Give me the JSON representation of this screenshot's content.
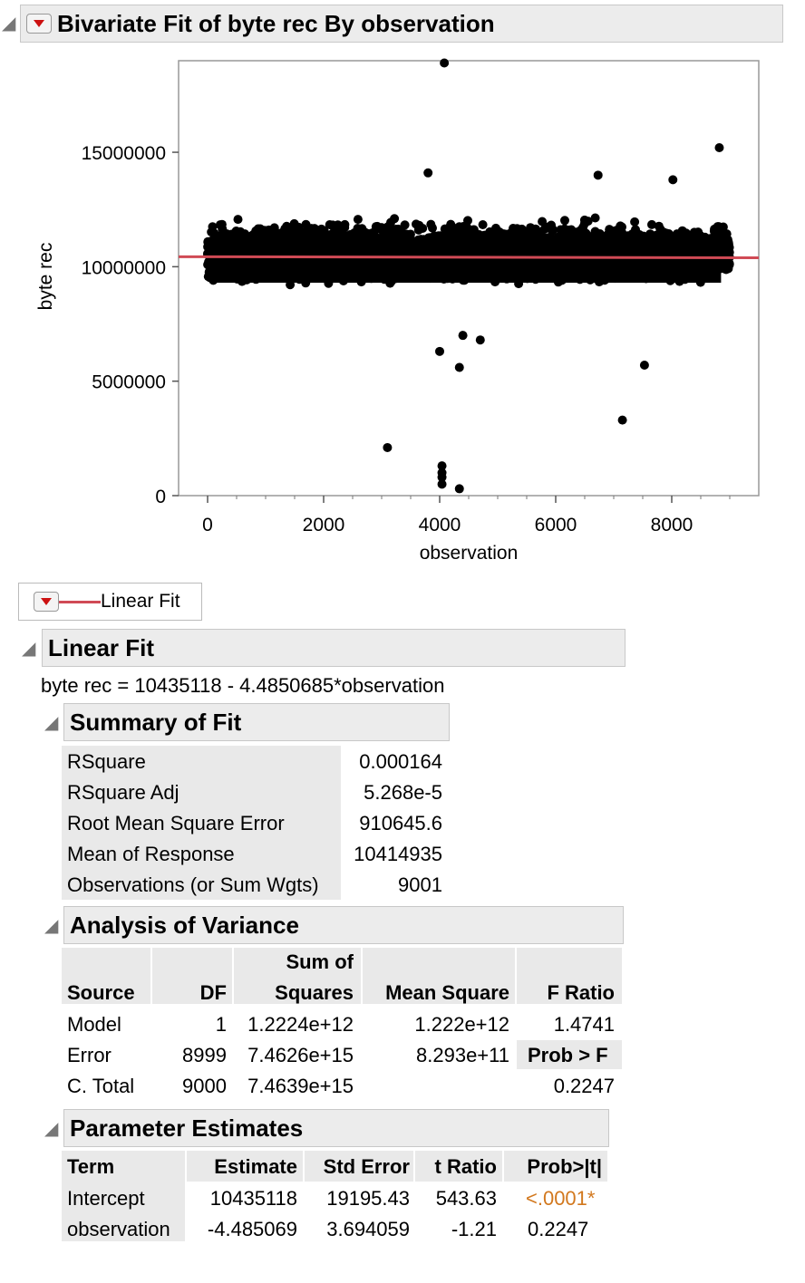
{
  "title": "Bivariate Fit of byte rec By observation",
  "chart_data": {
    "type": "scatter",
    "xlabel": "observation",
    "ylabel": "byte rec",
    "xlim": [
      -500,
      9500
    ],
    "ylim": [
      0,
      19000000
    ],
    "x_ticks": [
      "0",
      "2000",
      "4000",
      "6000",
      "8000"
    ],
    "y_ticks": [
      "0",
      "5000000",
      "10000000",
      "15000000"
    ],
    "n_points": 9001,
    "dense_band": {
      "x_range": [
        0,
        9000
      ],
      "y_range": [
        8300000,
        12500000
      ]
    },
    "outliers": [
      {
        "x": 4080,
        "y": 18900000
      },
      {
        "x": 8820,
        "y": 15200000
      },
      {
        "x": 3800,
        "y": 14100000
      },
      {
        "x": 6730,
        "y": 14000000
      },
      {
        "x": 8020,
        "y": 13800000
      },
      {
        "x": 4000,
        "y": 6300000
      },
      {
        "x": 4400,
        "y": 7000000
      },
      {
        "x": 4700,
        "y": 6800000
      },
      {
        "x": 4340,
        "y": 5600000
      },
      {
        "x": 7530,
        "y": 5700000
      },
      {
        "x": 7150,
        "y": 3300000
      },
      {
        "x": 3100,
        "y": 2100000
      },
      {
        "x": 4040,
        "y": 1300000
      },
      {
        "x": 4040,
        "y": 1000000
      },
      {
        "x": 4040,
        "y": 800000
      },
      {
        "x": 4040,
        "y": 500000
      },
      {
        "x": 4340,
        "y": 300000
      }
    ],
    "fit_line": {
      "intercept": 10435118,
      "slope": -4.4850685,
      "color": "#d04a55"
    }
  },
  "legend": {
    "label": "Linear Fit"
  },
  "linear_fit": {
    "title": "Linear Fit",
    "equation": "byte rec = 10435118 - 4.4850685*observation"
  },
  "summary_of_fit": {
    "title": "Summary of Fit",
    "rows": [
      {
        "label": "RSquare",
        "value": "0.000164"
      },
      {
        "label": "RSquare Adj",
        "value": "5.268e-5"
      },
      {
        "label": "Root Mean Square Error",
        "value": "910645.6"
      },
      {
        "label": "Mean of Response",
        "value": "10414935"
      },
      {
        "label": "Observations (or Sum Wgts)",
        "value": "9001"
      }
    ]
  },
  "anova": {
    "title": "Analysis of Variance",
    "headers": {
      "source": "Source",
      "df": "DF",
      "ss_top": "Sum of",
      "ss_bottom": "Squares",
      "ms": "Mean Square",
      "f": "F Ratio"
    },
    "rows": [
      {
        "source": "Model",
        "df": "1",
        "ss": "1.2224e+12",
        "ms": "1.222e+12",
        "f": "1.4741"
      },
      {
        "source": "Error",
        "df": "8999",
        "ss": "7.4626e+15",
        "ms": "8.293e+11",
        "f": "Prob > F"
      },
      {
        "source": "C. Total",
        "df": "9000",
        "ss": "7.4639e+15",
        "ms": "",
        "f": "0.2247"
      }
    ]
  },
  "parameter_estimates": {
    "title": "Parameter Estimates",
    "headers": {
      "term": "Term",
      "estimate": "Estimate",
      "stderr": "Std Error",
      "tratio": "t Ratio",
      "prob": "Prob>|t|"
    },
    "rows": [
      {
        "term": "Intercept",
        "estimate": "10435118",
        "stderr": "19195.43",
        "tratio": "543.63",
        "prob": "<.0001*"
      },
      {
        "term": "observation",
        "estimate": "-4.485069",
        "stderr": "3.694059",
        "tratio": "-1.21",
        "prob": "0.2247"
      }
    ],
    "signif_color": "#d2781e"
  }
}
